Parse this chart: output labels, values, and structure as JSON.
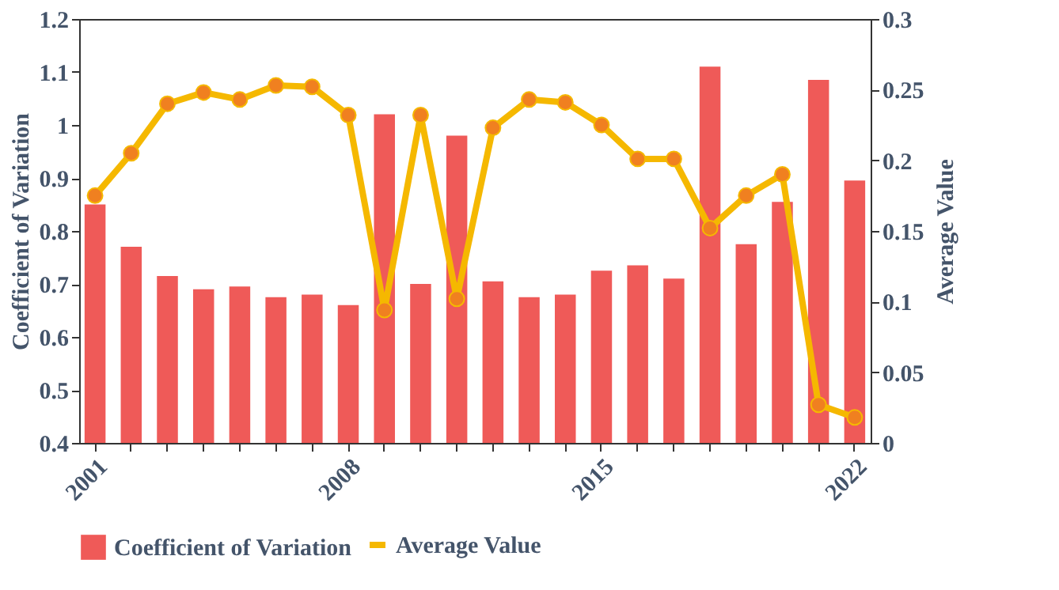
{
  "chart_data": {
    "type": "bar",
    "categories": [
      "2001",
      null,
      null,
      null,
      null,
      null,
      null,
      "2008",
      null,
      null,
      null,
      null,
      null,
      null,
      "2015",
      null,
      null,
      null,
      null,
      null,
      null,
      "2022"
    ],
    "ylabel": "Coefficient of Variation",
    "y2label": "Average Value",
    "ylim": [
      0.4,
      1.2
    ],
    "yticks": [
      0.4,
      0.5,
      0.6,
      0.7,
      0.8,
      0.9,
      1,
      1.1,
      1.2
    ],
    "y2lim": [
      0,
      0.3
    ],
    "y2ticks": [
      0,
      0.05,
      0.1,
      0.15,
      0.2,
      0.25,
      0.3
    ],
    "legend": "bottom",
    "grid": false,
    "series": [
      {
        "name": "Coefficient of Variation",
        "color": "#ef5a58",
        "values": [
          0.85,
          0.77,
          0.715,
          0.69,
          0.695,
          0.675,
          0.68,
          0.66,
          1.02,
          0.7,
          0.98,
          0.705,
          0.675,
          0.68,
          0.725,
          0.735,
          0.71,
          1.11,
          0.775,
          0.855,
          1.085,
          0.895
        ]
      },
      {
        "name": "Average Value",
        "type": "line",
        "axis": "y2",
        "color": "#f5b800",
        "marker": "circle",
        "values": [
          0.175,
          0.205,
          0.24,
          0.248,
          0.243,
          0.253,
          0.252,
          0.232,
          0.094,
          0.232,
          0.102,
          0.223,
          0.243,
          0.241,
          0.225,
          0.201,
          0.201,
          0.152,
          0.175,
          0.19,
          0.027,
          0.018
        ]
      }
    ]
  }
}
